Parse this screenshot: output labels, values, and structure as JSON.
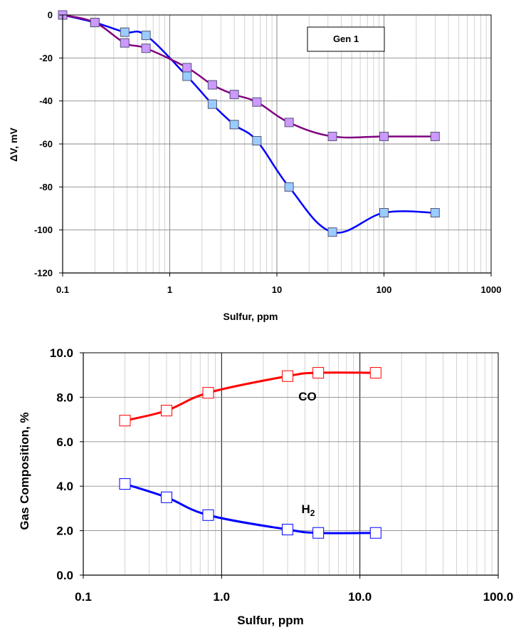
{
  "chart_data": [
    {
      "type": "line",
      "title": "",
      "xlabel": "Sulfur, ppm",
      "ylabel": "ΔV, mV",
      "xscale": "log",
      "xlim": [
        0.1,
        1000
      ],
      "ylim": [
        -120,
        0
      ],
      "x_ticks": [
        "0.1",
        "1",
        "10",
        "100",
        "1000"
      ],
      "y_ticks": [
        "0",
        "-20",
        "-40",
        "-60",
        "-80",
        "-100",
        "-120"
      ],
      "grid": true,
      "legend": "Gen 1",
      "series": [
        {
          "color": "#0000ff",
          "marker_fill": "#99ccff",
          "x": [
            0.1,
            0.2,
            0.38,
            0.6,
            1.45,
            2.5,
            4,
            6.5,
            13,
            33,
            100,
            300
          ],
          "y": [
            0,
            -3.5,
            -8,
            -9.5,
            -28.5,
            -41.5,
            -51,
            -58.5,
            -80,
            -101,
            -92,
            -92
          ]
        },
        {
          "color": "#800080",
          "marker_fill": "#cc99ff",
          "x": [
            0.1,
            0.2,
            0.38,
            0.6,
            1.45,
            2.5,
            4,
            6.5,
            13,
            33,
            100,
            300
          ],
          "y": [
            0,
            -3.5,
            -13,
            -15.5,
            -24.5,
            -32.5,
            -37,
            -40.5,
            -50,
            -56.5,
            -56.5,
            -56.5
          ]
        }
      ]
    },
    {
      "type": "line",
      "title": "",
      "xlabel": "Sulfur, ppm",
      "ylabel": "Gas Composition, %",
      "xscale": "log",
      "xlim": [
        0.1,
        100
      ],
      "ylim": [
        0,
        10
      ],
      "x_ticks": [
        "0.1",
        "1.0",
        "10.0",
        "100.0"
      ],
      "y_ticks": [
        "0.0",
        "2.0",
        "4.0",
        "6.0",
        "8.0",
        "10.0"
      ],
      "grid": true,
      "series": [
        {
          "name": "CO",
          "color": "#ff0000",
          "x": [
            0.2,
            0.4,
            0.8,
            3,
            5,
            13
          ],
          "y": [
            6.95,
            7.4,
            8.2,
            8.95,
            9.1,
            9.1
          ]
        },
        {
          "name": "H2",
          "name_base": "H",
          "name_sub": "2",
          "color": "#0000ff",
          "x": [
            0.2,
            0.4,
            0.8,
            3,
            5,
            13
          ],
          "y": [
            4.1,
            3.5,
            2.7,
            2.05,
            1.9,
            1.9
          ]
        }
      ]
    }
  ]
}
